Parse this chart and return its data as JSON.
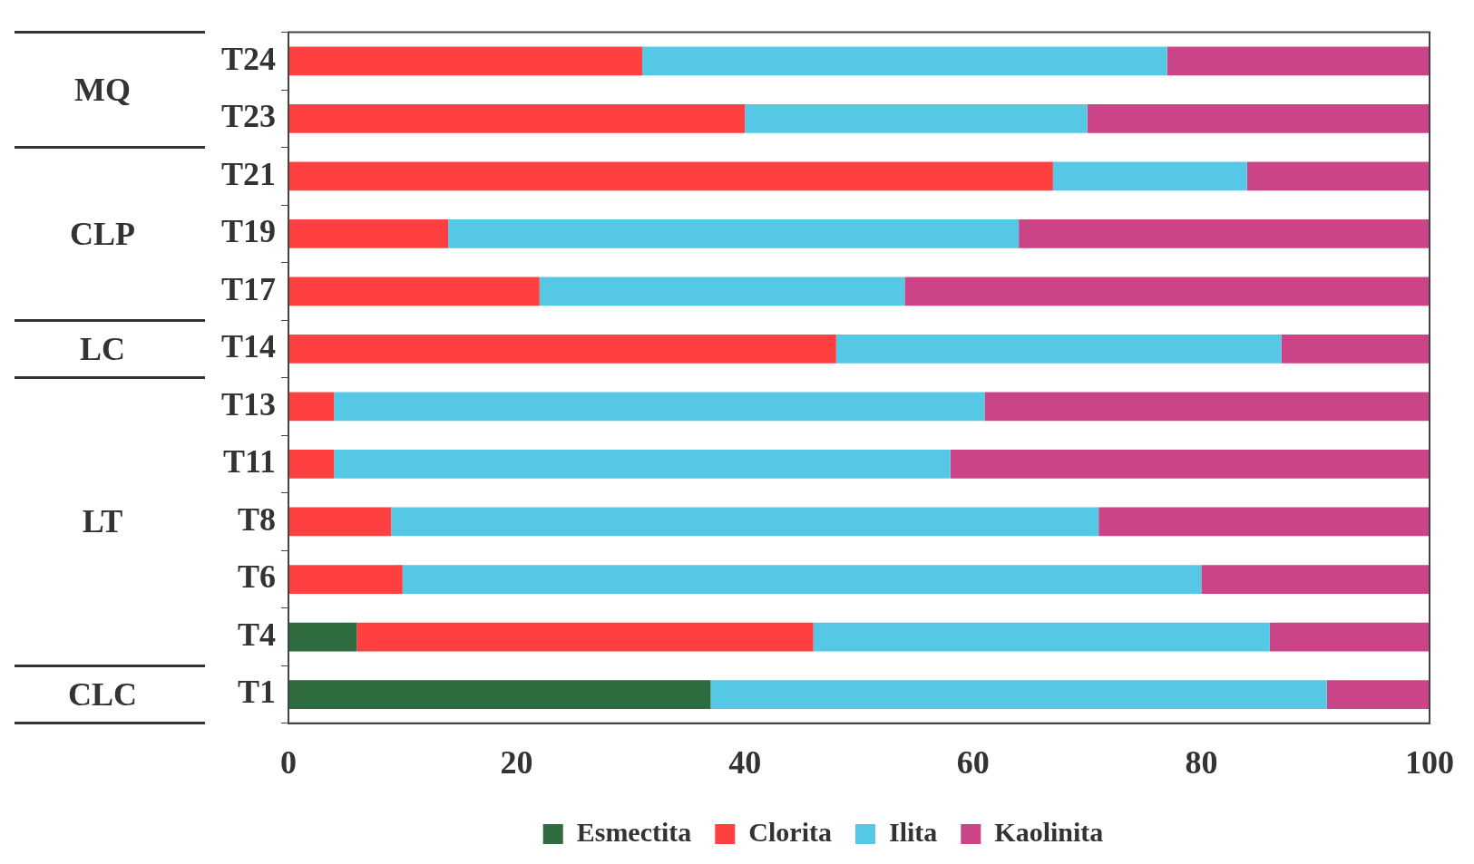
{
  "chart_data": {
    "type": "bar",
    "orientation": "horizontal",
    "stacked": true,
    "categories": [
      "T24",
      "T23",
      "T21",
      "T19",
      "T17",
      "T14",
      "T13",
      "T11",
      "T8",
      "T6",
      "T4",
      "T1"
    ],
    "series": [
      {
        "name": "Esmectita",
        "color": "#2e6b3e",
        "values": [
          0,
          0,
          0,
          0,
          0,
          0,
          0,
          0,
          0,
          0,
          6,
          37
        ]
      },
      {
        "name": "Clorita",
        "color": "#ff4040",
        "values": [
          31,
          40,
          67,
          14,
          22,
          48,
          4,
          4,
          9,
          10,
          40,
          0
        ]
      },
      {
        "name": "Ilita",
        "color": "#55c8e6",
        "values": [
          46,
          30,
          17,
          50,
          32,
          39,
          57,
          54,
          62,
          70,
          40,
          54
        ]
      },
      {
        "name": "Kaolinita",
        "color": "#cc4488",
        "values": [
          23,
          30,
          16,
          36,
          46,
          13,
          39,
          42,
          29,
          20,
          14,
          9
        ]
      }
    ],
    "xlim": [
      0,
      100
    ],
    "xticks": [
      0,
      20,
      40,
      60,
      80,
      100
    ],
    "grid": false,
    "legend": "bottom",
    "annotations": [
      "MQ",
      "CLP",
      "LC",
      "LT",
      "CLC"
    ]
  }
}
